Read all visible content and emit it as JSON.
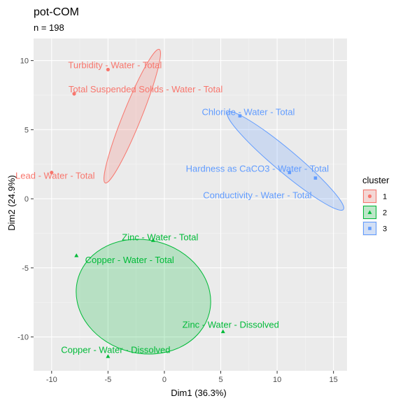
{
  "chart_data": {
    "type": "scatter",
    "title": "pot-COM",
    "subtitle": "n = 198",
    "xlabel": "Dim1 (36.3%)",
    "ylabel": "Dim2 (24.9%)",
    "xlim": [
      -11.6,
      16.2
    ],
    "ylim": [
      -12.45,
      11.6
    ],
    "x_ticks": [
      -10,
      -5,
      0,
      5,
      10,
      15
    ],
    "y_ticks": [
      -10,
      -5,
      0,
      5,
      10
    ],
    "grid": true,
    "legend": {
      "title": "cluster",
      "position": "right",
      "entries": [
        "1",
        "2",
        "3"
      ]
    },
    "series": [
      {
        "name": "1",
        "color": "#F8766D",
        "marker": "circle",
        "points": [
          {
            "label": "Turbidity - Water - Total",
            "x": -5.0,
            "y": 9.35
          },
          {
            "label": "Total Suspended Solids - Water - Total",
            "x": -8.0,
            "y": 7.6
          },
          {
            "label": "Lead - Water - Total",
            "x": -10.0,
            "y": 1.9
          }
        ]
      },
      {
        "name": "2",
        "color": "#00BA38",
        "marker": "triangle",
        "points": [
          {
            "label": "Zinc - Water - Total",
            "x": -1.0,
            "y": -3.0
          },
          {
            "label": "Copper - Water - Total",
            "x": -7.8,
            "y": -4.1
          },
          {
            "label": "Zinc - Water - Dissolved",
            "x": 5.2,
            "y": -9.6
          },
          {
            "label": "Copper - Water - Dissolved",
            "x": -5.0,
            "y": -11.4
          }
        ]
      },
      {
        "name": "3",
        "color": "#619CFF",
        "marker": "square",
        "points": [
          {
            "label": "Chloride - Water - Total",
            "x": 6.7,
            "y": 6.0
          },
          {
            "label": "Hardness as CaCO3 - Water - Total",
            "x": 11.1,
            "y": 1.9
          },
          {
            "label": "Conductivity - Water - Total",
            "x": 13.4,
            "y": 1.5
          }
        ]
      }
    ]
  }
}
